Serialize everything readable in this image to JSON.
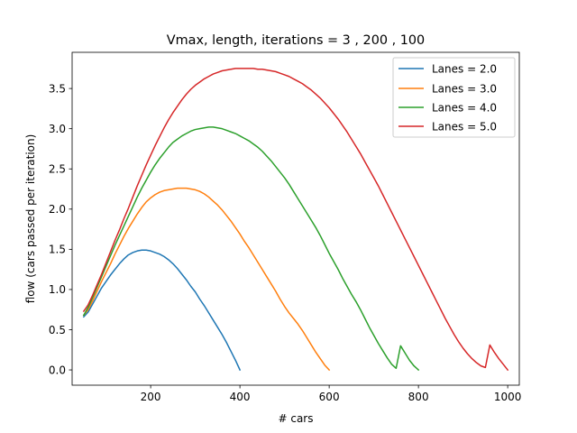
{
  "chart_data": {
    "type": "line",
    "title": "Vmax, length, iterations = 3 , 200 , 100",
    "xlabel": "# cars",
    "ylabel": "flow (cars passed per iteration)",
    "xlim": [
      24,
      1026
    ],
    "ylim": [
      -0.19,
      3.95
    ],
    "xticks": [
      200,
      400,
      600,
      800,
      1000
    ],
    "yticks": [
      0.0,
      0.5,
      1.0,
      1.5,
      2.0,
      2.5,
      3.0,
      3.5
    ],
    "xtick_labels": [
      "200",
      "400",
      "600",
      "800",
      "1000"
    ],
    "ytick_labels": [
      "0.0",
      "0.5",
      "1.0",
      "1.5",
      "2.0",
      "2.5",
      "3.0",
      "3.5"
    ],
    "grid": false,
    "legend_position": "top-right",
    "series": [
      {
        "name": "Lanes = 2.0",
        "color": "#1f77b4",
        "points": [
          [
            50,
            0.66
          ],
          [
            60,
            0.72
          ],
          [
            70,
            0.82
          ],
          [
            80,
            0.92
          ],
          [
            90,
            1.02
          ],
          [
            100,
            1.1
          ],
          [
            110,
            1.18
          ],
          [
            120,
            1.25
          ],
          [
            130,
            1.32
          ],
          [
            140,
            1.38
          ],
          [
            150,
            1.43
          ],
          [
            160,
            1.46
          ],
          [
            170,
            1.48
          ],
          [
            180,
            1.49
          ],
          [
            190,
            1.49
          ],
          [
            200,
            1.48
          ],
          [
            210,
            1.46
          ],
          [
            220,
            1.44
          ],
          [
            230,
            1.41
          ],
          [
            240,
            1.37
          ],
          [
            250,
            1.32
          ],
          [
            260,
            1.26
          ],
          [
            270,
            1.19
          ],
          [
            280,
            1.12
          ],
          [
            290,
            1.04
          ],
          [
            300,
            0.97
          ],
          [
            310,
            0.88
          ],
          [
            320,
            0.8
          ],
          [
            330,
            0.71
          ],
          [
            340,
            0.62
          ],
          [
            350,
            0.53
          ],
          [
            360,
            0.44
          ],
          [
            370,
            0.34
          ],
          [
            380,
            0.23
          ],
          [
            390,
            0.12
          ],
          [
            400,
            0.0
          ]
        ]
      },
      {
        "name": "Lanes = 3.0",
        "color": "#ff7f0e",
        "points": [
          [
            50,
            0.68
          ],
          [
            60,
            0.75
          ],
          [
            70,
            0.86
          ],
          [
            80,
            0.98
          ],
          [
            90,
            1.1
          ],
          [
            100,
            1.21
          ],
          [
            110,
            1.32
          ],
          [
            120,
            1.44
          ],
          [
            130,
            1.55
          ],
          [
            140,
            1.66
          ],
          [
            150,
            1.76
          ],
          [
            160,
            1.85
          ],
          [
            170,
            1.94
          ],
          [
            180,
            2.02
          ],
          [
            190,
            2.09
          ],
          [
            200,
            2.14
          ],
          [
            210,
            2.18
          ],
          [
            220,
            2.21
          ],
          [
            230,
            2.23
          ],
          [
            240,
            2.24
          ],
          [
            250,
            2.25
          ],
          [
            260,
            2.26
          ],
          [
            270,
            2.26
          ],
          [
            280,
            2.26
          ],
          [
            290,
            2.25
          ],
          [
            300,
            2.24
          ],
          [
            310,
            2.22
          ],
          [
            320,
            2.19
          ],
          [
            330,
            2.15
          ],
          [
            340,
            2.1
          ],
          [
            350,
            2.05
          ],
          [
            360,
            1.99
          ],
          [
            370,
            1.92
          ],
          [
            380,
            1.85
          ],
          [
            390,
            1.77
          ],
          [
            400,
            1.69
          ],
          [
            410,
            1.6
          ],
          [
            420,
            1.52
          ],
          [
            430,
            1.43
          ],
          [
            440,
            1.34
          ],
          [
            450,
            1.25
          ],
          [
            460,
            1.16
          ],
          [
            470,
            1.07
          ],
          [
            480,
            0.98
          ],
          [
            490,
            0.88
          ],
          [
            500,
            0.79
          ],
          [
            510,
            0.71
          ],
          [
            520,
            0.64
          ],
          [
            530,
            0.57
          ],
          [
            540,
            0.49
          ],
          [
            550,
            0.4
          ],
          [
            560,
            0.31
          ],
          [
            570,
            0.22
          ],
          [
            580,
            0.14
          ],
          [
            590,
            0.06
          ],
          [
            600,
            0.0
          ]
        ]
      },
      {
        "name": "Lanes = 4.0",
        "color": "#2ca02c",
        "points": [
          [
            50,
            0.68
          ],
          [
            60,
            0.78
          ],
          [
            70,
            0.9
          ],
          [
            80,
            1.03
          ],
          [
            90,
            1.16
          ],
          [
            100,
            1.29
          ],
          [
            110,
            1.42
          ],
          [
            120,
            1.55
          ],
          [
            130,
            1.67
          ],
          [
            140,
            1.79
          ],
          [
            150,
            1.91
          ],
          [
            160,
            2.03
          ],
          [
            170,
            2.15
          ],
          [
            180,
            2.26
          ],
          [
            190,
            2.36
          ],
          [
            200,
            2.46
          ],
          [
            210,
            2.55
          ],
          [
            220,
            2.63
          ],
          [
            230,
            2.7
          ],
          [
            240,
            2.77
          ],
          [
            250,
            2.83
          ],
          [
            260,
            2.87
          ],
          [
            270,
            2.91
          ],
          [
            280,
            2.94
          ],
          [
            290,
            2.97
          ],
          [
            300,
            2.99
          ],
          [
            310,
            3.0
          ],
          [
            320,
            3.01
          ],
          [
            330,
            3.02
          ],
          [
            340,
            3.02
          ],
          [
            350,
            3.01
          ],
          [
            360,
            3.0
          ],
          [
            370,
            2.98
          ],
          [
            380,
            2.96
          ],
          [
            390,
            2.94
          ],
          [
            400,
            2.91
          ],
          [
            410,
            2.88
          ],
          [
            420,
            2.85
          ],
          [
            430,
            2.81
          ],
          [
            440,
            2.77
          ],
          [
            450,
            2.72
          ],
          [
            460,
            2.66
          ],
          [
            470,
            2.6
          ],
          [
            480,
            2.53
          ],
          [
            490,
            2.46
          ],
          [
            500,
            2.39
          ],
          [
            510,
            2.31
          ],
          [
            520,
            2.22
          ],
          [
            530,
            2.13
          ],
          [
            540,
            2.04
          ],
          [
            550,
            1.95
          ],
          [
            560,
            1.86
          ],
          [
            570,
            1.77
          ],
          [
            580,
            1.67
          ],
          [
            590,
            1.56
          ],
          [
            600,
            1.45
          ],
          [
            610,
            1.35
          ],
          [
            620,
            1.25
          ],
          [
            630,
            1.14
          ],
          [
            640,
            1.04
          ],
          [
            650,
            0.94
          ],
          [
            660,
            0.85
          ],
          [
            670,
            0.75
          ],
          [
            680,
            0.64
          ],
          [
            690,
            0.53
          ],
          [
            700,
            0.43
          ],
          [
            710,
            0.33
          ],
          [
            720,
            0.24
          ],
          [
            730,
            0.15
          ],
          [
            740,
            0.07
          ],
          [
            750,
            0.02
          ],
          [
            760,
            0.3
          ],
          [
            770,
            0.21
          ],
          [
            780,
            0.12
          ],
          [
            790,
            0.05
          ],
          [
            800,
            0.0
          ]
        ]
      },
      {
        "name": "Lanes = 5.0",
        "color": "#d62728",
        "points": [
          [
            50,
            0.73
          ],
          [
            60,
            0.81
          ],
          [
            70,
            0.93
          ],
          [
            80,
            1.06
          ],
          [
            90,
            1.19
          ],
          [
            100,
            1.33
          ],
          [
            110,
            1.47
          ],
          [
            120,
            1.61
          ],
          [
            130,
            1.74
          ],
          [
            140,
            1.88
          ],
          [
            150,
            2.01
          ],
          [
            160,
            2.15
          ],
          [
            170,
            2.29
          ],
          [
            180,
            2.42
          ],
          [
            190,
            2.55
          ],
          [
            200,
            2.67
          ],
          [
            210,
            2.79
          ],
          [
            220,
            2.9
          ],
          [
            230,
            3.01
          ],
          [
            240,
            3.11
          ],
          [
            250,
            3.2
          ],
          [
            260,
            3.28
          ],
          [
            270,
            3.36
          ],
          [
            280,
            3.43
          ],
          [
            290,
            3.49
          ],
          [
            300,
            3.54
          ],
          [
            310,
            3.58
          ],
          [
            320,
            3.62
          ],
          [
            330,
            3.65
          ],
          [
            340,
            3.68
          ],
          [
            350,
            3.7
          ],
          [
            360,
            3.72
          ],
          [
            370,
            3.73
          ],
          [
            380,
            3.74
          ],
          [
            390,
            3.75
          ],
          [
            400,
            3.75
          ],
          [
            410,
            3.75
          ],
          [
            420,
            3.75
          ],
          [
            430,
            3.75
          ],
          [
            440,
            3.74
          ],
          [
            450,
            3.74
          ],
          [
            460,
            3.73
          ],
          [
            470,
            3.72
          ],
          [
            480,
            3.71
          ],
          [
            490,
            3.69
          ],
          [
            500,
            3.67
          ],
          [
            510,
            3.65
          ],
          [
            520,
            3.62
          ],
          [
            530,
            3.59
          ],
          [
            540,
            3.56
          ],
          [
            550,
            3.52
          ],
          [
            560,
            3.48
          ],
          [
            570,
            3.43
          ],
          [
            580,
            3.38
          ],
          [
            590,
            3.32
          ],
          [
            600,
            3.26
          ],
          [
            610,
            3.19
          ],
          [
            620,
            3.12
          ],
          [
            630,
            3.04
          ],
          [
            640,
            2.96
          ],
          [
            650,
            2.87
          ],
          [
            660,
            2.78
          ],
          [
            670,
            2.69
          ],
          [
            680,
            2.59
          ],
          [
            690,
            2.49
          ],
          [
            700,
            2.39
          ],
          [
            710,
            2.29
          ],
          [
            720,
            2.18
          ],
          [
            730,
            2.07
          ],
          [
            740,
            1.96
          ],
          [
            750,
            1.85
          ],
          [
            760,
            1.74
          ],
          [
            770,
            1.63
          ],
          [
            780,
            1.52
          ],
          [
            790,
            1.41
          ],
          [
            800,
            1.3
          ],
          [
            810,
            1.19
          ],
          [
            820,
            1.08
          ],
          [
            830,
            0.97
          ],
          [
            840,
            0.86
          ],
          [
            850,
            0.75
          ],
          [
            860,
            0.64
          ],
          [
            870,
            0.54
          ],
          [
            880,
            0.44
          ],
          [
            890,
            0.35
          ],
          [
            900,
            0.27
          ],
          [
            910,
            0.2
          ],
          [
            920,
            0.14
          ],
          [
            930,
            0.09
          ],
          [
            940,
            0.05
          ],
          [
            950,
            0.03
          ],
          [
            960,
            0.31
          ],
          [
            970,
            0.22
          ],
          [
            980,
            0.14
          ],
          [
            990,
            0.07
          ],
          [
            1000,
            0.0
          ]
        ]
      }
    ]
  }
}
